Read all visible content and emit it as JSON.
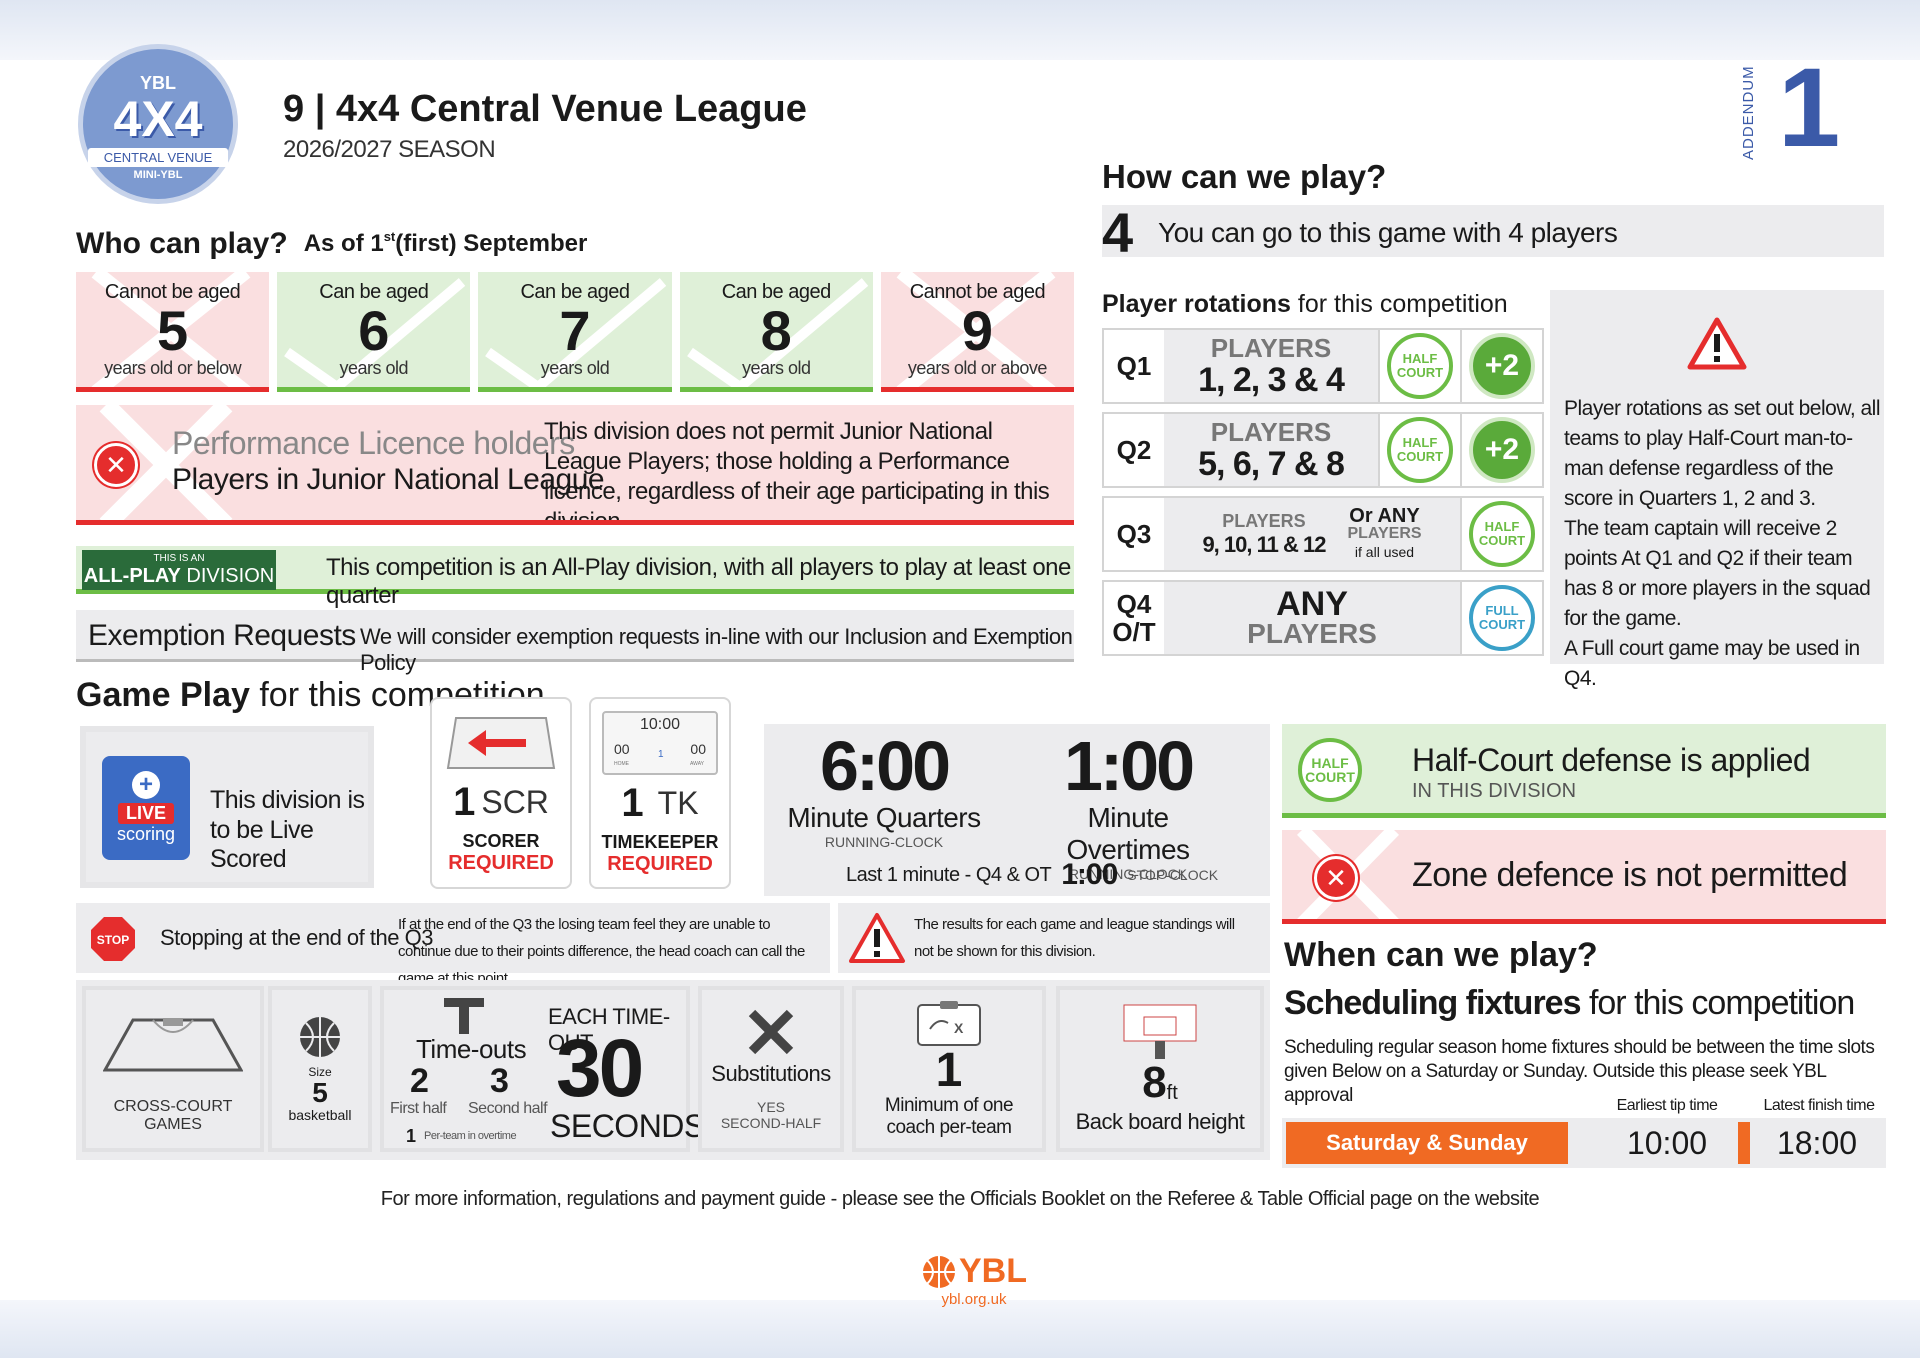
{
  "header": {
    "logo": {
      "top": "YBL",
      "main": "4X4",
      "line1": "CENTRAL VENUE",
      "line2": "MINI-YBL"
    },
    "title": "9 | 4x4 Central Venue League",
    "season": "2026/2027 SEASON",
    "addendum_label": "ADDENDUM",
    "addendum_number": "1"
  },
  "who": {
    "heading": "Who can play?",
    "asof": "As of 1",
    "asof_sup": "st",
    "asof_rest": " (first) September",
    "ages": [
      {
        "top": "Cannot be aged",
        "num": "5",
        "bottom": "years old or below",
        "ok": false
      },
      {
        "top": "Can be aged",
        "num": "6",
        "bottom": "years old",
        "ok": true
      },
      {
        "top": "Can be aged",
        "num": "7",
        "bottom": "years old",
        "ok": true
      },
      {
        "top": "Can be aged",
        "num": "8",
        "bottom": "years old",
        "ok": true
      },
      {
        "top": "Cannot be aged",
        "num": "9",
        "bottom": "years old or above",
        "ok": false
      }
    ],
    "licence_title1": "Performance Licence holders",
    "licence_title2": "Players in Junior National League",
    "licence_text": "This division does not permit Junior National League Players; those holding a Performance licence, regardless of their age participating in this division.",
    "allplay_small": "THIS IS AN",
    "allplay_big1": "ALL-PLAY",
    "allplay_big2": " DIVISION",
    "allplay_text": "This competition is an All-Play division, with all players to play at least one quarter",
    "exemption_title": "Exemption Requests",
    "exemption_text": "We will consider exemption requests in-line with our Inclusion and Exemption Policy"
  },
  "how": {
    "heading": "How can we play?",
    "players_num": "4",
    "players_text": "You can go to this game with 4 players",
    "rotations_bold": "Player rotations",
    "rotations_rest": " for this competition",
    "quarters": [
      {
        "q": "Q1",
        "label": "PLAYERS",
        "players": "1, 2, 3 & 4",
        "badges": [
          "HALF COURT",
          "+2"
        ]
      },
      {
        "q": "Q2",
        "label": "PLAYERS",
        "players": "5, 6, 7 & 8",
        "badges": [
          "HALF COURT",
          "+2"
        ]
      },
      {
        "q": "Q3",
        "label": "PLAYERS",
        "players": "9, 10, 11 & 12",
        "or1": "Or ANY",
        "or2": "PLAYERS",
        "or3": "if all used",
        "badges": [
          "HALF COURT"
        ]
      },
      {
        "q": "Q4",
        "q2": "O/T",
        "label": "ANY",
        "players": "PLAYERS",
        "badges": [
          "FULL COURT"
        ]
      }
    ],
    "note": "Player rotations as set out below, all teams to play Half-Court man-to-man defense regardless of the score in Quarters 1, 2 and 3.\nThe team captain will receive 2 points At Q1 and Q2 if their team has 8 or more players in the squad for the game.\nA Full court game may be used in Q4."
  },
  "game": {
    "heading_bold": "Game Play",
    "heading_rest": " for this competition",
    "live_line1": "This division is",
    "live_line2": "to be Live Scored",
    "live_badge": "LIVE",
    "live_scoring": "scoring",
    "scorer_num": "1",
    "scorer_abbr": "SCR",
    "scorer_label": "SCORER",
    "scorer_req": "REQUIRED",
    "tk_num": "1",
    "tk_abbr": "TK",
    "tk_label": "TIMEKEEPER",
    "tk_req": "REQUIRED",
    "clock_display": "10:00",
    "clock_home": "00",
    "clock_away": "00",
    "clock_period": "1",
    "clock_home_label": "HOME",
    "clock_away_label": "AWAY",
    "quarters_time": "6:00",
    "quarters_label": "Minute Quarters",
    "quarters_sub": "RUNNING-CLOCK",
    "ot_time": "1:00",
    "ot_label": "Minute Overtimes",
    "ot_sub": "RUNNING-CLOCK",
    "last_min": "Last 1 minute - Q4 & OT",
    "last_time": "1:00",
    "last_sub": "STOP-CLOCK",
    "stop_badge": "STOP",
    "stop_title": "Stopping at the end of the Q3",
    "stop_text": "If at the end of the Q3 the losing team feel they are unable to continue due to their points difference, the head coach can call the game at this point.",
    "results_text": "The results for each game and league standings will not be shown for this division.",
    "cross_court": "CROSS-COURT GAMES",
    "ball_size_label": "Size",
    "ball_size": "5",
    "ball_word": "basketball",
    "timeouts_label": "Time-outs",
    "to_first": "2",
    "to_first_label": "First half",
    "to_second": "3",
    "to_second_label": "Second half",
    "to_ot": "1",
    "to_ot_label": "Per-team in overtime",
    "each_timeout": "EACH TIME-OUT",
    "seconds_num": "30",
    "seconds_label": "SECONDS",
    "subs_label": "Substitutions",
    "subs_yes": "YES",
    "subs_when": "SECOND-HALF",
    "coach_num": "1",
    "coach_line1": "Minimum of one",
    "coach_line2": "coach per-team",
    "board_num": "8",
    "board_unit": "ft",
    "board_label": "Back board height"
  },
  "defense": {
    "half_title": "Half-Court defense is applied",
    "half_sub": "IN THIS DIVISION",
    "zone_title": "Zone defence is not permitted"
  },
  "when": {
    "heading": "When can we play?",
    "sched_bold": "Scheduling fixtures",
    "sched_rest": " for this competition",
    "sched_text": "Scheduling regular season home fixtures should be between the time slots given Below on a Saturday or Sunday. Outside this please seek YBL approval",
    "days": "Saturday & Sunday",
    "tip_label": "Earliest tip time",
    "tip_time": "10:00",
    "finish_label": "Latest finish time",
    "finish_time": "18:00"
  },
  "footer": {
    "info": "For more information, regulations and payment guide - please see the Officials Booklet on the Referee & Table Official page on the website",
    "logo": "YBL",
    "url": "ybl.org.uk"
  },
  "colors": {
    "green": "#6cbd45",
    "red": "#e52d2d",
    "blue": "#3b5aa8",
    "orange": "#f06a23",
    "gray": "#ececee"
  }
}
